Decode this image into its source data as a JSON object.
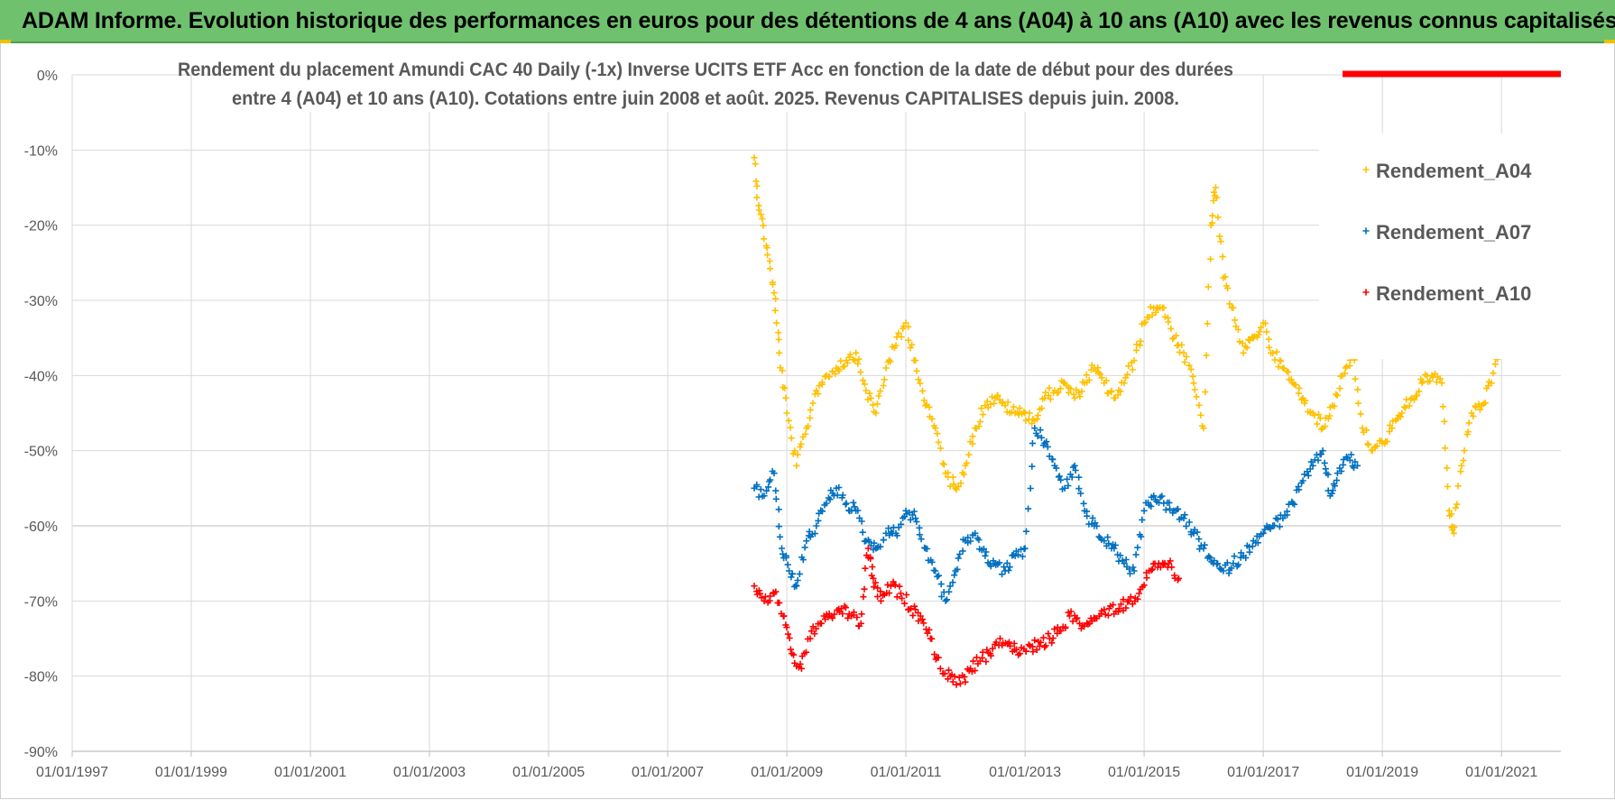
{
  "header": {
    "banner_title": "ADAM Informe. Evolution historique des performances en euros pour des détentions de 4 ans (A04) à 10 ans (A10) avec les revenus connus capitalisés"
  },
  "colors": {
    "banner_bg": "#6fc16e",
    "A04": "#ffc000",
    "A07": "#0070c0",
    "A10": "#ff0000",
    "grid": "#d9d9d9",
    "axis_text": "#595959",
    "title_text": "#595959"
  },
  "chart_data": {
    "type": "scatter",
    "title_lines": [
      "Rendement du placement Amundi CAC 40 Daily (-1x) Inverse UCITS ETF Acc en fonction de la date de début pour des durées",
      "entre 4 (A04) et 10 ans (A10). Cotations entre juin 2008 et août. 2025. Revenus CAPITALISES depuis juin. 2008."
    ],
    "xlabel": "",
    "ylabel": "",
    "x_axis": {
      "min": "1997-01-01",
      "max": "2021-12-31",
      "tick_labels": [
        "01/01/1997",
        "01/01/1999",
        "01/01/2001",
        "01/01/2003",
        "01/01/2005",
        "01/01/2007",
        "01/01/2009",
        "01/01/2011",
        "01/01/2013",
        "01/01/2015",
        "01/01/2017",
        "01/01/2019",
        "01/01/2021"
      ]
    },
    "y_axis": {
      "min": -90,
      "max": 0,
      "ticks": [
        0,
        -10,
        -20,
        -30,
        -40,
        -50,
        -60,
        -70,
        -80,
        -90
      ],
      "tick_labels": [
        "0%",
        "-10%",
        "-20%",
        "-30%",
        "-40%",
        "-50%",
        "-60%",
        "-70%",
        "-80%",
        "-90%"
      ]
    },
    "grid": "on",
    "legend_position": "top-right",
    "series": [
      {
        "name": "Rendement_A04",
        "color": "#ffc000",
        "points": [
          [
            "2008-06-15",
            -11
          ],
          [
            "2008-07-15",
            -18
          ],
          [
            "2008-09-01",
            -23
          ],
          [
            "2008-10-15",
            -29
          ],
          [
            "2008-11-15",
            -37
          ],
          [
            "2009-01-01",
            -45
          ],
          [
            "2009-03-01",
            -52
          ],
          [
            "2009-05-01",
            -47
          ],
          [
            "2009-07-01",
            -42
          ],
          [
            "2009-09-01",
            -40
          ],
          [
            "2009-11-01",
            -39
          ],
          [
            "2010-01-01",
            -38
          ],
          [
            "2010-03-01",
            -37
          ],
          [
            "2010-05-01",
            -42
          ],
          [
            "2010-07-01",
            -45
          ],
          [
            "2010-09-01",
            -39
          ],
          [
            "2010-11-01",
            -36
          ],
          [
            "2011-01-01",
            -33
          ],
          [
            "2011-03-01",
            -38
          ],
          [
            "2011-05-01",
            -44
          ],
          [
            "2011-07-01",
            -47
          ],
          [
            "2011-09-01",
            -53
          ],
          [
            "2011-11-01",
            -55
          ],
          [
            "2012-01-01",
            -52
          ],
          [
            "2012-03-01",
            -47
          ],
          [
            "2012-05-01",
            -44
          ],
          [
            "2012-07-01",
            -43
          ],
          [
            "2012-09-01",
            -44
          ],
          [
            "2012-11-01",
            -45
          ],
          [
            "2013-01-01",
            -45
          ],
          [
            "2013-03-01",
            -46
          ],
          [
            "2013-05-01",
            -43
          ],
          [
            "2013-07-01",
            -42
          ],
          [
            "2013-09-01",
            -41
          ],
          [
            "2013-11-01",
            -43
          ],
          [
            "2014-01-01",
            -41
          ],
          [
            "2014-03-01",
            -39
          ],
          [
            "2014-05-01",
            -41
          ],
          [
            "2014-07-01",
            -43
          ],
          [
            "2014-09-01",
            -41
          ],
          [
            "2014-11-01",
            -38
          ],
          [
            "2015-01-01",
            -33
          ],
          [
            "2015-03-01",
            -31
          ],
          [
            "2015-05-01",
            -31
          ],
          [
            "2015-07-01",
            -35
          ],
          [
            "2015-09-01",
            -37
          ],
          [
            "2015-11-01",
            -41
          ],
          [
            "2016-01-01",
            -47
          ],
          [
            "2016-02-15",
            -20
          ],
          [
            "2016-03-15",
            -15
          ],
          [
            "2016-05-01",
            -27
          ],
          [
            "2016-07-01",
            -31
          ],
          [
            "2016-09-01",
            -37
          ],
          [
            "2016-11-01",
            -35
          ],
          [
            "2017-01-01",
            -33
          ],
          [
            "2017-03-01",
            -37
          ],
          [
            "2017-05-01",
            -39
          ],
          [
            "2017-07-01",
            -41
          ],
          [
            "2017-09-01",
            -43
          ],
          [
            "2017-11-01",
            -45
          ],
          [
            "2018-01-01",
            -47
          ],
          [
            "2018-03-01",
            -44
          ],
          [
            "2018-05-01",
            -40
          ],
          [
            "2018-07-01",
            -37
          ],
          [
            "2018-09-01",
            -47
          ],
          [
            "2018-11-01",
            -50
          ],
          [
            "2019-01-01",
            -49
          ],
          [
            "2019-03-01",
            -47
          ],
          [
            "2019-05-01",
            -45
          ],
          [
            "2019-07-01",
            -43
          ],
          [
            "2019-09-01",
            -41
          ],
          [
            "2019-11-01",
            -40
          ],
          [
            "2020-01-01",
            -41
          ],
          [
            "2020-02-15",
            -58
          ],
          [
            "2020-03-15",
            -61
          ],
          [
            "2020-05-01",
            -52
          ],
          [
            "2020-07-01",
            -45
          ],
          [
            "2020-09-01",
            -44
          ],
          [
            "2020-11-01",
            -41
          ],
          [
            "2021-01-01",
            -36
          ],
          [
            "2021-03-01",
            -34
          ]
        ]
      },
      {
        "name": "Rendement_A07",
        "color": "#0070c0",
        "points": [
          [
            "2008-06-15",
            -55
          ],
          [
            "2008-08-15",
            -56
          ],
          [
            "2008-10-15",
            -53
          ],
          [
            "2008-12-01",
            -63
          ],
          [
            "2009-01-15",
            -66
          ],
          [
            "2009-03-01",
            -68
          ],
          [
            "2009-05-01",
            -62
          ],
          [
            "2009-07-01",
            -60
          ],
          [
            "2009-09-01",
            -57
          ],
          [
            "2009-11-01",
            -55
          ],
          [
            "2010-01-01",
            -57
          ],
          [
            "2010-03-01",
            -58
          ],
          [
            "2010-05-01",
            -62
          ],
          [
            "2010-07-01",
            -63
          ],
          [
            "2010-09-01",
            -61
          ],
          [
            "2010-11-01",
            -61
          ],
          [
            "2011-01-01",
            -58
          ],
          [
            "2011-03-01",
            -59
          ],
          [
            "2011-05-01",
            -63
          ],
          [
            "2011-07-01",
            -66
          ],
          [
            "2011-09-01",
            -70
          ],
          [
            "2011-11-01",
            -66
          ],
          [
            "2012-01-01",
            -62
          ],
          [
            "2012-03-01",
            -61
          ],
          [
            "2012-05-01",
            -64
          ],
          [
            "2012-07-01",
            -65
          ],
          [
            "2012-09-01",
            -66
          ],
          [
            "2012-11-01",
            -64
          ],
          [
            "2013-01-01",
            -63
          ],
          [
            "2013-03-01",
            -47
          ],
          [
            "2013-05-01",
            -49
          ],
          [
            "2013-07-01",
            -52
          ],
          [
            "2013-09-01",
            -55
          ],
          [
            "2013-11-01",
            -52
          ],
          [
            "2014-01-01",
            -58
          ],
          [
            "2014-03-01",
            -60
          ],
          [
            "2014-05-01",
            -62
          ],
          [
            "2014-07-01",
            -63
          ],
          [
            "2014-09-01",
            -65
          ],
          [
            "2014-11-01",
            -66
          ],
          [
            "2015-01-01",
            -58
          ],
          [
            "2015-03-01",
            -56
          ],
          [
            "2015-05-01",
            -57
          ],
          [
            "2015-07-01",
            -58
          ],
          [
            "2015-09-01",
            -59
          ],
          [
            "2015-11-01",
            -61
          ],
          [
            "2016-01-01",
            -63
          ],
          [
            "2016-03-01",
            -65
          ],
          [
            "2016-05-01",
            -66
          ],
          [
            "2016-07-01",
            -65
          ],
          [
            "2016-09-01",
            -64
          ],
          [
            "2016-11-01",
            -62
          ],
          [
            "2017-01-01",
            -61
          ],
          [
            "2017-03-01",
            -60
          ],
          [
            "2017-05-01",
            -59
          ],
          [
            "2017-07-01",
            -57
          ],
          [
            "2017-09-01",
            -54
          ],
          [
            "2017-11-01",
            -52
          ],
          [
            "2018-01-01",
            -50
          ],
          [
            "2018-02-15",
            -56
          ],
          [
            "2018-04-01",
            -53
          ],
          [
            "2018-06-01",
            -51
          ],
          [
            "2018-08-01",
            -52
          ]
        ]
      },
      {
        "name": "Rendement_A10",
        "color": "#ff0000",
        "points": [
          [
            "2008-06-15",
            -68
          ],
          [
            "2008-08-15",
            -70
          ],
          [
            "2008-10-15",
            -69
          ],
          [
            "2008-12-15",
            -72
          ],
          [
            "2009-02-01",
            -77
          ],
          [
            "2009-04-01",
            -79
          ],
          [
            "2009-06-01",
            -74
          ],
          [
            "2009-08-01",
            -73
          ],
          [
            "2009-10-01",
            -72
          ],
          [
            "2009-12-01",
            -71
          ],
          [
            "2010-02-01",
            -72
          ],
          [
            "2010-04-01",
            -73
          ],
          [
            "2010-05-15",
            -63
          ],
          [
            "2010-06-15",
            -67
          ],
          [
            "2010-08-01",
            -70
          ],
          [
            "2010-10-01",
            -68
          ],
          [
            "2010-12-01",
            -69
          ],
          [
            "2011-02-01",
            -71
          ],
          [
            "2011-04-01",
            -72
          ],
          [
            "2011-06-01",
            -75
          ],
          [
            "2011-08-01",
            -79
          ],
          [
            "2011-10-01",
            -80
          ],
          [
            "2011-12-01",
            -81
          ],
          [
            "2012-02-01",
            -79
          ],
          [
            "2012-04-01",
            -78
          ],
          [
            "2012-06-01",
            -77
          ],
          [
            "2012-08-01",
            -75
          ],
          [
            "2012-10-01",
            -76
          ],
          [
            "2012-12-01",
            -77
          ],
          [
            "2013-02-01",
            -76
          ],
          [
            "2013-04-01",
            -76
          ],
          [
            "2013-06-01",
            -75
          ],
          [
            "2013-08-01",
            -74
          ],
          [
            "2013-10-01",
            -72
          ],
          [
            "2013-12-01",
            -73
          ],
          [
            "2014-02-01",
            -73
          ],
          [
            "2014-04-01",
            -72
          ],
          [
            "2014-06-01",
            -71
          ],
          [
            "2014-08-01",
            -71
          ],
          [
            "2014-10-01",
            -70
          ],
          [
            "2014-12-01",
            -69
          ],
          [
            "2015-02-01",
            -66
          ],
          [
            "2015-04-01",
            -65
          ],
          [
            "2015-06-01",
            -65
          ],
          [
            "2015-08-01",
            -67
          ]
        ]
      }
    ]
  }
}
